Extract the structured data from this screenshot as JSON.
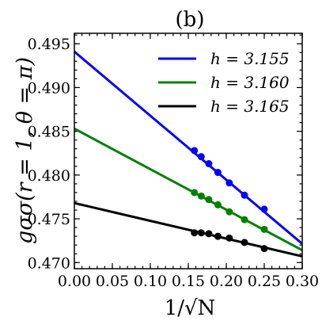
{
  "chart_data": {
    "type": "line",
    "title": "(b)",
    "xlabel": "1/√N",
    "ylabel": "gσσ(r = 1, θ = π)",
    "xlim": [
      0.0,
      0.3
    ],
    "ylim": [
      0.4693,
      0.4962
    ],
    "xticks": [
      0.0,
      0.05,
      0.1,
      0.15,
      0.2,
      0.25,
      0.3
    ],
    "xtick_labels": [
      "0.00",
      "0.05",
      "0.10",
      "0.15",
      "0.20",
      "0.25",
      "0.30"
    ],
    "yticks": [
      0.47,
      0.475,
      0.48,
      0.485,
      0.49,
      0.495
    ],
    "ytick_labels": [
      "0.470",
      "0.475",
      "0.480",
      "0.485",
      "0.490",
      "0.495"
    ],
    "legend_position": "top-right",
    "grid": false,
    "series": [
      {
        "name": "h = 3.155",
        "color": "#0000ff",
        "fit": {
          "intercept": 0.4941,
          "slope": -0.0732
        },
        "x": [
          0.158,
          0.167,
          0.177,
          0.189,
          0.204,
          0.224,
          0.25
        ],
        "y": [
          0.4828,
          0.4821,
          0.4813,
          0.4803,
          0.4791,
          0.4777,
          0.4761
        ]
      },
      {
        "name": "h = 3.160",
        "color": "#008000",
        "fit": {
          "intercept": 0.4853,
          "slope": -0.0463
        },
        "x": [
          0.158,
          0.167,
          0.177,
          0.189,
          0.204,
          0.224,
          0.25
        ],
        "y": [
          0.478,
          0.4776,
          0.4772,
          0.4766,
          0.4758,
          0.4749,
          0.4738
        ]
      },
      {
        "name": "h = 3.165",
        "color": "#000000",
        "fit": {
          "intercept": 0.4768,
          "slope": -0.0203
        },
        "x": [
          0.158,
          0.167,
          0.177,
          0.189,
          0.204,
          0.224,
          0.25
        ],
        "y": [
          0.4734,
          0.4734,
          0.4733,
          0.473,
          0.4728,
          0.4723,
          0.4716
        ]
      }
    ]
  }
}
